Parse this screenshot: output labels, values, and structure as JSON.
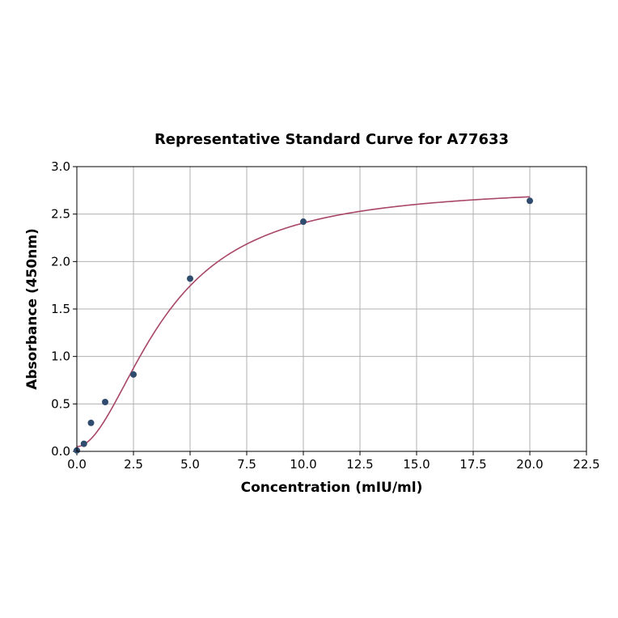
{
  "chart_data": {
    "type": "scatter",
    "title": "Representative Standard Curve for A77633",
    "xlabel": "Concentration (mIU/ml)",
    "ylabel": "Absorbance (450nm)",
    "xlim": [
      0,
      22.5
    ],
    "ylim": [
      0,
      3.0
    ],
    "xticks": [
      0,
      2.5,
      5,
      7.5,
      10,
      12.5,
      15,
      17.5,
      20,
      22.5
    ],
    "xtick_labels": [
      "0.0",
      "2.5",
      "5.0",
      "7.5",
      "10.0",
      "12.5",
      "15.0",
      "17.5",
      "20.0",
      "22.5"
    ],
    "yticks": [
      0,
      0.5,
      1.0,
      1.5,
      2.0,
      2.5,
      3.0
    ],
    "ytick_labels": [
      "0.0",
      "0.5",
      "1.0",
      "1.5",
      "2.0",
      "2.5",
      "3.0"
    ],
    "grid": true,
    "series": [
      {
        "kind": "points",
        "color": "#2f4b6e",
        "x": [
          0,
          0.3125,
          0.625,
          1.25,
          2.5,
          5,
          10,
          20
        ],
        "y": [
          0.01,
          0.08,
          0.3,
          0.52,
          0.81,
          1.82,
          2.42,
          2.64
        ]
      },
      {
        "kind": "fit-curve",
        "color": "#a8466a",
        "model": "4PL",
        "params": {
          "A": 0.05,
          "B": 1.9,
          "C": 3.9,
          "D": 2.8
        },
        "x_range": [
          0,
          20
        ]
      }
    ]
  }
}
